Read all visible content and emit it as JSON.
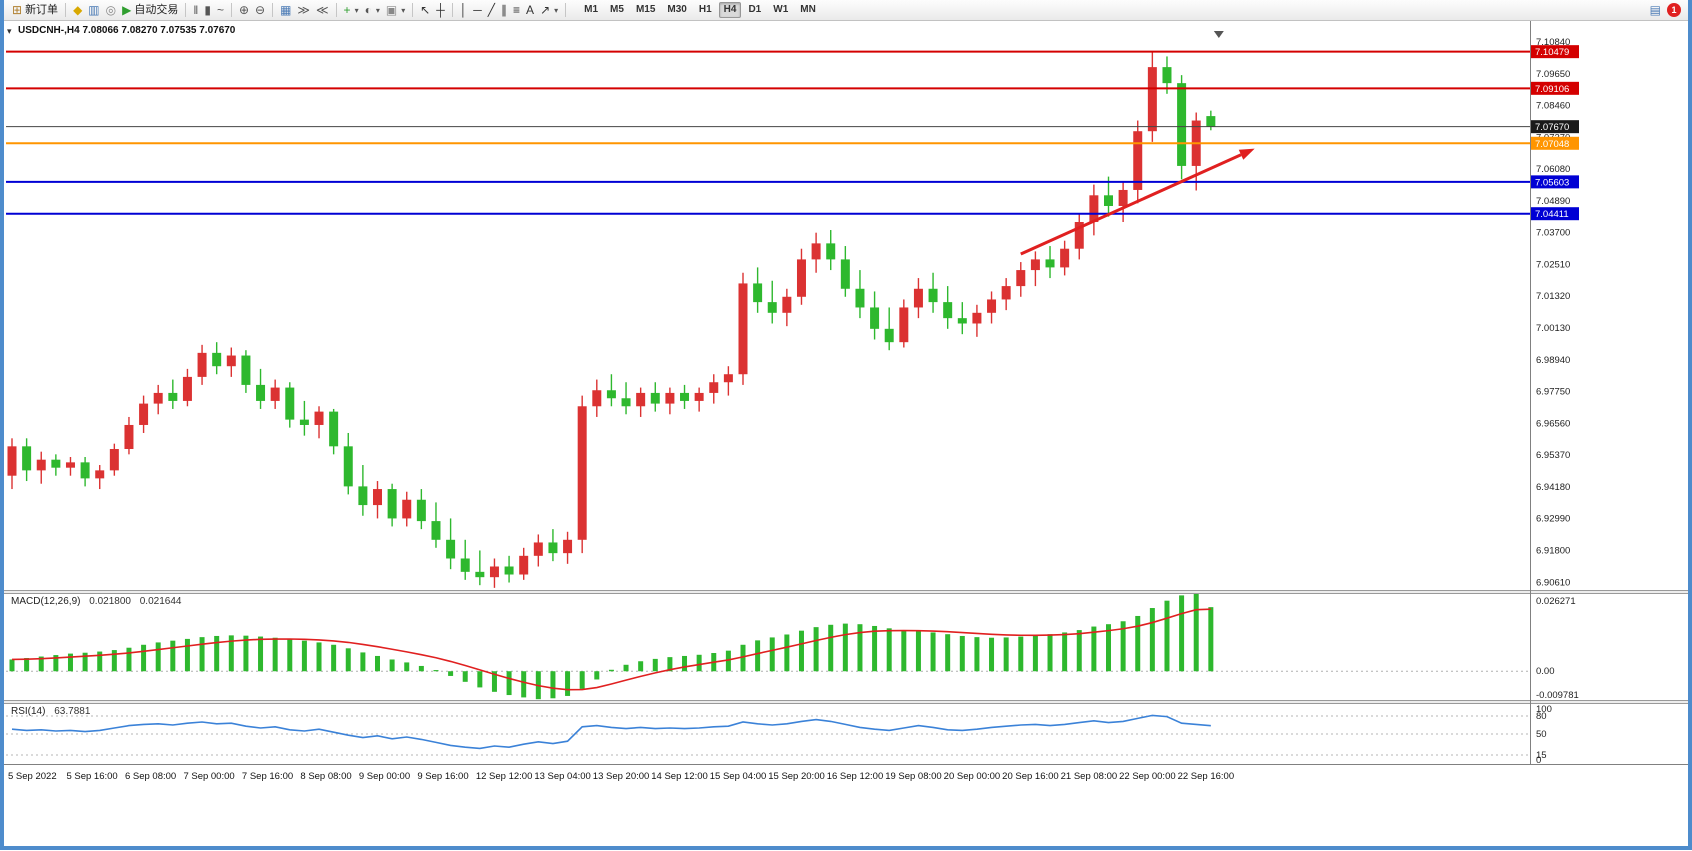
{
  "toolbar": {
    "items": [
      {
        "name": "new-order-button",
        "glyph": "⊞",
        "glyph_color": "#b08030",
        "label": "新订单"
      },
      {
        "sep": true
      },
      {
        "name": "metaeditor-button",
        "glyph": "◆",
        "glyph_color": "#d8a800"
      },
      {
        "name": "market-watch-button",
        "glyph": "▥",
        "glyph_color": "#4a7ab5"
      },
      {
        "name": "refresh-button",
        "glyph": "◎",
        "glyph_color": "#888888"
      },
      {
        "name": "autotrading-button",
        "glyph": "▶",
        "glyph_color": "#2f9e2f",
        "label": "自动交易"
      },
      {
        "sep": true
      },
      {
        "name": "bar-chart-mode-button",
        "glyph": "‖",
        "glyph_color": "#555555"
      },
      {
        "name": "candlestick-mode-button",
        "glyph": "▮",
        "glyph_color": "#555555"
      },
      {
        "name": "line-chart-mode-button",
        "glyph": "~",
        "glyph_color": "#555555"
      },
      {
        "sep": true
      },
      {
        "name": "zoom-in-button",
        "glyph": "⊕",
        "glyph_color": "#555555"
      },
      {
        "name": "zoom-out-button",
        "glyph": "⊖",
        "glyph_color": "#555555"
      },
      {
        "sep": true
      },
      {
        "name": "tile-windows-button",
        "glyph": "▦",
        "glyph_color": "#4a7ab5"
      },
      {
        "name": "auto-scroll-button",
        "glyph": "≫",
        "glyph_color": "#555555"
      },
      {
        "name": "chart-shift-button",
        "glyph": "≪",
        "glyph_color": "#555555"
      },
      {
        "sep": true
      },
      {
        "name": "indicators-button",
        "glyph": "+",
        "glyph_color": "#2f9e2f",
        "caret": true
      },
      {
        "name": "periods-button",
        "glyph": "◐",
        "glyph_color": "#555555",
        "caret": true
      },
      {
        "name": "templates-button",
        "glyph": "▣",
        "glyph_color": "#888888",
        "caret": true
      },
      {
        "sep": true
      },
      {
        "name": "cursor-tool-button",
        "glyph": "↖",
        "glyph_color": "#333333"
      },
      {
        "name": "crosshair-tool-button",
        "glyph": "┼",
        "glyph_color": "#333333"
      },
      {
        "sep": true
      },
      {
        "name": "vertical-line-tool-button",
        "glyph": "│",
        "glyph_color": "#333333"
      },
      {
        "name": "horizontal-line-tool-button",
        "glyph": "─",
        "glyph_color": "#333333"
      },
      {
        "name": "trendline-tool-button",
        "glyph": "╱",
        "glyph_color": "#333333"
      },
      {
        "name": "channel-tool-button",
        "glyph": "∥",
        "glyph_color": "#333333"
      },
      {
        "name": "fibonacci-tool-button",
        "glyph": "≡",
        "glyph_color": "#333333"
      },
      {
        "name": "text-tool-button",
        "glyph": "A",
        "glyph_color": "#333333"
      },
      {
        "name": "arrows-tool-button",
        "glyph": "↗",
        "glyph_color": "#333333",
        "caret": true
      },
      {
        "sep": true
      }
    ],
    "timeframes": [
      "M1",
      "M5",
      "M15",
      "M30",
      "H1",
      "H4",
      "D1",
      "W1",
      "MN"
    ],
    "active_timeframe": "H4",
    "right_icon": {
      "name": "mailbox-icon",
      "glyph": "▤",
      "color": "#4a7ab5"
    },
    "notification": {
      "count": "1",
      "color": "#e02020"
    }
  },
  "chart": {
    "header": "USDCNH-,H4 7.08066 7.08270 7.07535 7.07670",
    "symbol": "USDCNH-",
    "period": "H4",
    "one_click_glyph": "▾"
  },
  "chart_data": [
    {
      "type": "candlestick",
      "title": "USDCNH-,H4",
      "current_ohlc": {
        "open": "7.08066",
        "high": "7.08270",
        "low": "7.07535",
        "close": "7.07670"
      },
      "ylim": [
        6.9032,
        7.1129
      ],
      "up_color": "#db3232",
      "down_color": "#2eb82e",
      "price_axis_labels": [
        "7.10840",
        "7.09650",
        "7.08460",
        "7.07270",
        "7.06080",
        "7.04890",
        "7.03700",
        "7.02510",
        "7.01320",
        "7.00130",
        "6.98940",
        "6.97750",
        "6.96560",
        "6.95370",
        "6.94180",
        "6.92990",
        "6.91800",
        "6.90610"
      ],
      "x_labels": [
        {
          "index": 0,
          "text": "5 Sep 2022"
        },
        {
          "index": 4,
          "text": "5 Sep 16:00"
        },
        {
          "index": 8,
          "text": "6 Sep 08:00"
        },
        {
          "index": 12,
          "text": "7 Sep 00:00"
        },
        {
          "index": 16,
          "text": "7 Sep 16:00"
        },
        {
          "index": 20,
          "text": "8 Sep 08:00"
        },
        {
          "index": 24,
          "text": "9 Sep 00:00"
        },
        {
          "index": 28,
          "text": "9 Sep 16:00"
        },
        {
          "index": 32,
          "text": "12 Sep 12:00"
        },
        {
          "index": 36,
          "text": "13 Sep 04:00"
        },
        {
          "index": 40,
          "text": "13 Sep 20:00"
        },
        {
          "index": 44,
          "text": "14 Sep 12:00"
        },
        {
          "index": 48,
          "text": "15 Sep 04:00"
        },
        {
          "index": 52,
          "text": "15 Sep 20:00"
        },
        {
          "index": 56,
          "text": "16 Sep 12:00"
        },
        {
          "index": 60,
          "text": "19 Sep 08:00"
        },
        {
          "index": 64,
          "text": "20 Sep 00:00"
        },
        {
          "index": 68,
          "text": "20 Sep 16:00"
        },
        {
          "index": 72,
          "text": "21 Sep 08:00"
        },
        {
          "index": 76,
          "text": "22 Sep 00:00"
        },
        {
          "index": 80,
          "text": "22 Sep 16:00"
        }
      ],
      "candles": [
        [
          6.946,
          6.96,
          6.941,
          6.957
        ],
        [
          6.957,
          6.96,
          6.944,
          6.948
        ],
        [
          6.948,
          6.955,
          6.943,
          6.952
        ],
        [
          6.952,
          6.954,
          6.946,
          6.949
        ],
        [
          6.949,
          6.953,
          6.946,
          6.951
        ],
        [
          6.951,
          6.953,
          6.942,
          6.945
        ],
        [
          6.945,
          6.95,
          6.941,
          6.948
        ],
        [
          6.948,
          6.958,
          6.946,
          6.956
        ],
        [
          6.956,
          6.968,
          6.954,
          6.965
        ],
        [
          6.965,
          6.976,
          6.962,
          6.973
        ],
        [
          6.973,
          6.98,
          6.969,
          6.977
        ],
        [
          6.977,
          6.982,
          6.971,
          6.974
        ],
        [
          6.974,
          6.986,
          6.972,
          6.983
        ],
        [
          6.983,
          6.995,
          6.98,
          6.992
        ],
        [
          6.992,
          6.996,
          6.984,
          6.987
        ],
        [
          6.987,
          6.994,
          6.983,
          6.991
        ],
        [
          6.991,
          6.993,
          6.977,
          6.98
        ],
        [
          6.98,
          6.986,
          6.971,
          6.974
        ],
        [
          6.974,
          6.982,
          6.971,
          6.979
        ],
        [
          6.979,
          6.981,
          6.964,
          6.967
        ],
        [
          6.967,
          6.974,
          6.961,
          6.965
        ],
        [
          6.965,
          6.972,
          6.96,
          6.97
        ],
        [
          6.97,
          6.971,
          6.954,
          6.957
        ],
        [
          6.957,
          6.962,
          6.939,
          6.942
        ],
        [
          6.942,
          6.95,
          6.931,
          6.935
        ],
        [
          6.935,
          6.944,
          6.93,
          6.941
        ],
        [
          6.941,
          6.943,
          6.927,
          6.93
        ],
        [
          6.93,
          6.94,
          6.927,
          6.937
        ],
        [
          6.937,
          6.941,
          6.926,
          6.929
        ],
        [
          6.929,
          6.936,
          6.919,
          6.922
        ],
        [
          6.922,
          6.93,
          6.911,
          6.915
        ],
        [
          6.915,
          6.922,
          6.907,
          6.91
        ],
        [
          6.91,
          6.918,
          6.905,
          6.908
        ],
        [
          6.908,
          6.915,
          6.904,
          6.912
        ],
        [
          6.912,
          6.916,
          6.906,
          6.909
        ],
        [
          6.909,
          6.919,
          6.907,
          6.916
        ],
        [
          6.916,
          6.924,
          6.912,
          6.921
        ],
        [
          6.921,
          6.926,
          6.914,
          6.917
        ],
        [
          6.917,
          6.925,
          6.913,
          6.922
        ],
        [
          6.922,
          6.976,
          6.917,
          6.972
        ],
        [
          6.972,
          6.982,
          6.968,
          6.978
        ],
        [
          6.978,
          6.984,
          6.972,
          6.975
        ],
        [
          6.975,
          6.981,
          6.969,
          6.972
        ],
        [
          6.972,
          6.979,
          6.968,
          6.977
        ],
        [
          6.977,
          6.981,
          6.97,
          6.973
        ],
        [
          6.973,
          6.979,
          6.969,
          6.977
        ],
        [
          6.977,
          6.98,
          6.971,
          6.974
        ],
        [
          6.974,
          6.979,
          6.97,
          6.977
        ],
        [
          6.977,
          6.984,
          6.973,
          6.981
        ],
        [
          6.981,
          6.987,
          6.976,
          6.984
        ],
        [
          6.984,
          7.022,
          6.98,
          7.018
        ],
        [
          7.018,
          7.024,
          7.007,
          7.011
        ],
        [
          7.011,
          7.019,
          7.003,
          7.007
        ],
        [
          7.007,
          7.016,
          7.002,
          7.013
        ],
        [
          7.013,
          7.031,
          7.01,
          7.027
        ],
        [
          7.027,
          7.037,
          7.022,
          7.033
        ],
        [
          7.033,
          7.038,
          7.023,
          7.027
        ],
        [
          7.027,
          7.032,
          7.013,
          7.016
        ],
        [
          7.016,
          7.023,
          7.005,
          7.009
        ],
        [
          7.009,
          7.015,
          6.997,
          7.001
        ],
        [
          7.001,
          7.009,
          6.993,
          6.996
        ],
        [
          6.996,
          7.012,
          6.994,
          7.009
        ],
        [
          7.009,
          7.02,
          7.005,
          7.016
        ],
        [
          7.016,
          7.022,
          7.007,
          7.011
        ],
        [
          7.011,
          7.017,
          7.001,
          7.005
        ],
        [
          7.005,
          7.011,
          6.999,
          7.003
        ],
        [
          7.003,
          7.01,
          6.998,
          7.007
        ],
        [
          7.007,
          7.015,
          7.003,
          7.012
        ],
        [
          7.012,
          7.02,
          7.008,
          7.017
        ],
        [
          7.017,
          7.026,
          7.013,
          7.023
        ],
        [
          7.023,
          7.03,
          7.017,
          7.027
        ],
        [
          7.027,
          7.032,
          7.02,
          7.024
        ],
        [
          7.024,
          7.034,
          7.021,
          7.031
        ],
        [
          7.031,
          7.044,
          7.027,
          7.041
        ],
        [
          7.041,
          7.055,
          7.036,
          7.051
        ],
        [
          7.051,
          7.058,
          7.043,
          7.047
        ],
        [
          7.047,
          7.056,
          7.041,
          7.053
        ],
        [
          7.053,
          7.079,
          7.048,
          7.075
        ],
        [
          7.075,
          7.10479,
          7.071,
          7.099
        ],
        [
          7.099,
          7.103,
          7.089,
          7.093
        ],
        [
          7.093,
          7.096,
          7.057,
          7.062
        ],
        [
          7.062,
          7.082,
          7.0528,
          7.079
        ],
        [
          7.08066,
          7.0827,
          7.07535,
          7.0767
        ]
      ],
      "hlines": [
        {
          "price": 7.10479,
          "label": "7.10479",
          "color": "#d40000",
          "width": 2
        },
        {
          "price": 7.09106,
          "label": "7.09106",
          "color": "#d40000",
          "width": 2
        },
        {
          "price": 7.07048,
          "label": "7.07048",
          "color": "#ff9500",
          "width": 2
        },
        {
          "price": 7.05603,
          "label": "7.05603",
          "color": "#0000d4",
          "width": 2
        },
        {
          "price": 7.04411,
          "label": "7.04411",
          "color": "#0000d4",
          "width": 2
        }
      ],
      "current_price": {
        "price": 7.0767,
        "label": "7.07670",
        "line_color": "#444444",
        "badge_color": "#1a1a1a",
        "width": 1
      },
      "trend_arrow": {
        "from_index": 69,
        "from_price": 7.029,
        "to_index": 85,
        "to_price": 7.0685,
        "color": "#e02020",
        "width": 3
      }
    },
    {
      "type": "bar",
      "title": "MACD(12,26,9)",
      "value_main": "0.021800",
      "value_signal": "0.021644",
      "axis_labels": [
        "0.026271",
        "0.00",
        "-0.009781"
      ],
      "ylim": [
        -0.009781,
        0.026271
      ],
      "signal_period": 9,
      "bar_color": "#2eb82e",
      "signal_color": "#e02020",
      "values": [
        0.004,
        0.0045,
        0.005,
        0.0055,
        0.006,
        0.0063,
        0.0067,
        0.0072,
        0.008,
        0.009,
        0.0098,
        0.0104,
        0.011,
        0.0116,
        0.012,
        0.0122,
        0.0121,
        0.0118,
        0.0114,
        0.011,
        0.0104,
        0.0098,
        0.009,
        0.0078,
        0.0064,
        0.0052,
        0.004,
        0.003,
        0.0018,
        0.0004,
        -0.0016,
        -0.0036,
        -0.0055,
        -0.007,
        -0.0081,
        -0.0089,
        -0.0095,
        -0.0092,
        -0.0084,
        -0.006,
        -0.0028,
        0.0005,
        0.0022,
        0.0034,
        0.0042,
        0.0048,
        0.0052,
        0.0056,
        0.0062,
        0.007,
        0.009,
        0.0105,
        0.0115,
        0.0125,
        0.0138,
        0.015,
        0.0158,
        0.0162,
        0.016,
        0.0154,
        0.0146,
        0.014,
        0.0136,
        0.0132,
        0.0126,
        0.012,
        0.0116,
        0.0114,
        0.0115,
        0.0118,
        0.0122,
        0.0126,
        0.0132,
        0.014,
        0.0152,
        0.016,
        0.017,
        0.0188,
        0.0215,
        0.024,
        0.0258,
        0.0263,
        0.0218
      ]
    },
    {
      "type": "line",
      "title": "RSI(14)",
      "value": "63.7881",
      "axis_labels": [
        "100",
        "80",
        "50",
        "15",
        "0"
      ],
      "levels": [
        80,
        50,
        15
      ],
      "ylim": [
        0,
        100
      ],
      "line_color": "#3b82d8",
      "values": [
        58,
        56,
        57,
        55,
        56,
        54,
        56,
        60,
        64,
        66,
        67,
        65,
        68,
        70,
        67,
        68,
        63,
        60,
        62,
        57,
        55,
        58,
        53,
        48,
        44,
        47,
        42,
        45,
        41,
        36,
        31,
        28,
        26,
        30,
        28,
        33,
        37,
        34,
        38,
        62,
        64,
        61,
        59,
        61,
        59,
        60,
        59,
        60,
        62,
        63,
        70,
        67,
        65,
        67,
        71,
        74,
        71,
        66,
        61,
        58,
        56,
        60,
        64,
        61,
        57,
        56,
        58,
        61,
        63,
        65,
        66,
        64,
        66,
        69,
        72,
        69,
        71,
        76,
        81,
        79,
        68,
        66,
        63.7881
      ]
    }
  ]
}
